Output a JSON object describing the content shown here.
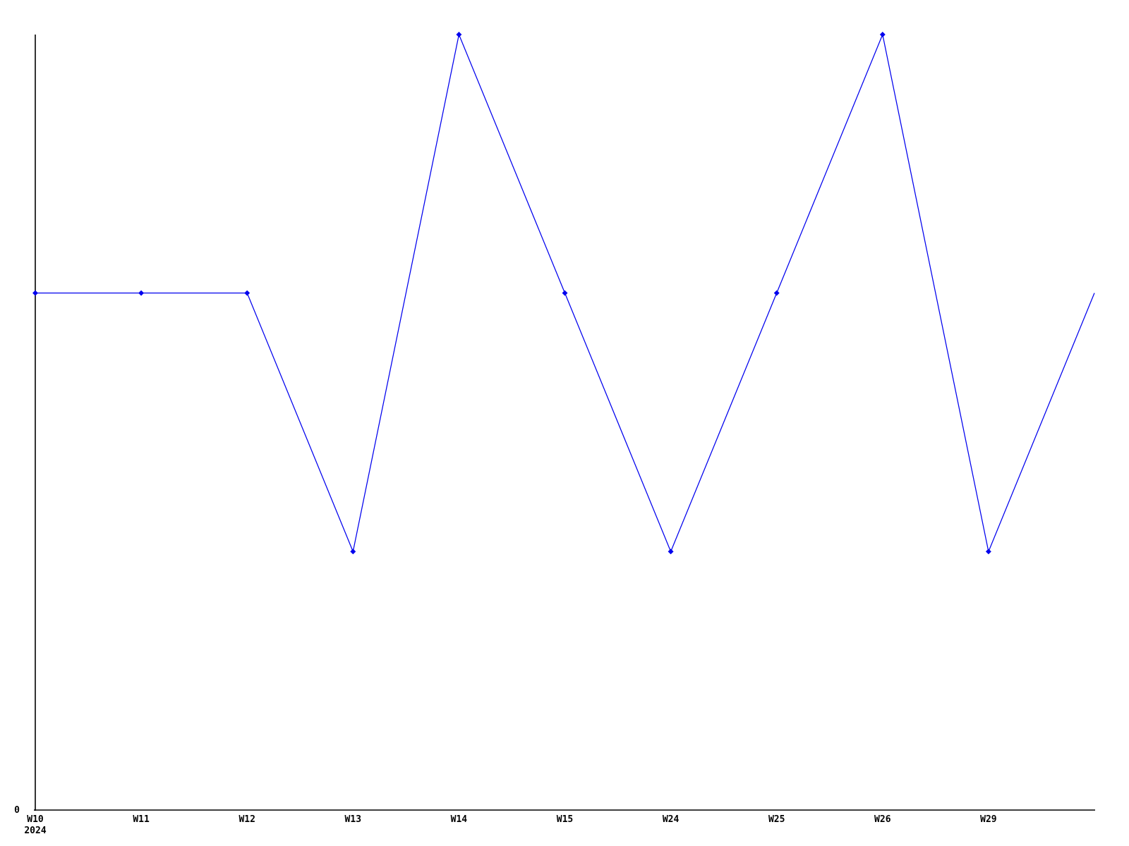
{
  "chart_data": {
    "type": "line",
    "title": "",
    "xlabel": "",
    "ylabel": "",
    "categories": [
      "W10",
      "W11",
      "W12",
      "W13",
      "W14",
      "W15",
      "W24",
      "W25",
      "W26",
      "W29",
      ""
    ],
    "values": [
      2,
      2,
      2,
      1,
      3,
      2,
      1,
      2,
      3,
      1,
      2
    ],
    "markers": [
      true,
      true,
      true,
      true,
      true,
      true,
      true,
      true,
      true,
      true,
      false
    ],
    "x_year_label": "2024",
    "y_tick_labels": [
      "0"
    ],
    "y_zero_label": "0",
    "ylim": [
      0,
      3
    ],
    "grid": false,
    "legend": "none",
    "line_color": "#0000ee",
    "axis_color": "#000000",
    "background_color": "#ffffff",
    "marker_shape": "diamond"
  }
}
